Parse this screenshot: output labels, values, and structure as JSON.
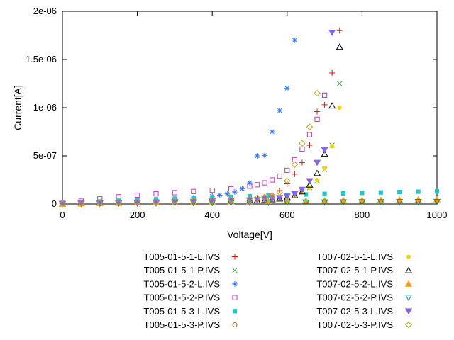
{
  "chart_data": {
    "type": "scatter",
    "title": "",
    "xlabel": "Voltage[V]",
    "ylabel": "Current[A]",
    "xlim": [
      0,
      1000
    ],
    "ylim": [
      0,
      2e-06
    ],
    "grid": false,
    "legend_position": "below-plot-two-columns",
    "x_tick_values": [
      0,
      200,
      400,
      600,
      800,
      1000
    ],
    "x_tick_labels": [
      "0",
      "200",
      "400",
      "600",
      "800",
      "1000"
    ],
    "y_tick_values": [
      0,
      5e-07,
      1e-06,
      1.5e-06,
      2e-06
    ],
    "y_tick_labels": [
      "0",
      "5e-07",
      "1e-06",
      "1.5e-06",
      "2e-06"
    ],
    "series": [
      {
        "name": "T005-01-5-1-L.IVS",
        "marker": "plus",
        "color": "#e01414",
        "points": [
          [
            0,
            5e-09
          ],
          [
            50,
            1.2e-08
          ],
          [
            100,
            1.6e-08
          ],
          [
            150,
            2e-08
          ],
          [
            200,
            2.3e-08
          ],
          [
            250,
            2.6e-08
          ],
          [
            300,
            3e-08
          ],
          [
            350,
            3.4e-08
          ],
          [
            400,
            3.9e-08
          ],
          [
            450,
            4.5e-08
          ],
          [
            500,
            5.5e-08
          ],
          [
            520,
            6.2e-08
          ],
          [
            540,
            7.5e-08
          ],
          [
            560,
            9.5e-08
          ],
          [
            580,
            1.4e-07
          ],
          [
            600,
            2.1e-07
          ],
          [
            620,
            3.1e-07
          ],
          [
            640,
            4.3e-07
          ],
          [
            660,
            6.1e-07
          ],
          [
            680,
            9.6e-07
          ],
          [
            700,
            1.03e-06
          ],
          [
            720,
            1.36e-06
          ],
          [
            740,
            1.8e-06
          ]
        ]
      },
      {
        "name": "T005-01-5-1-P.IVS",
        "marker": "cross",
        "color": "#44aa44",
        "points": [
          [
            0,
            3e-09
          ],
          [
            50,
            8e-09
          ],
          [
            100,
            1.1e-08
          ],
          [
            150,
            1.4e-08
          ],
          [
            200,
            1.6e-08
          ],
          [
            250,
            1.9e-08
          ],
          [
            300,
            2.2e-08
          ],
          [
            350,
            2.5e-08
          ],
          [
            400,
            2.9e-08
          ],
          [
            450,
            3.3e-08
          ],
          [
            500,
            3.8e-08
          ],
          [
            520,
            4.2e-08
          ],
          [
            540,
            4.7e-08
          ],
          [
            560,
            5.3e-08
          ],
          [
            580,
            6.2e-08
          ],
          [
            600,
            7.5e-08
          ],
          [
            620,
            9.5e-08
          ],
          [
            640,
            1.25e-07
          ],
          [
            660,
            1.7e-07
          ],
          [
            680,
            2.4e-07
          ],
          [
            700,
            3.6e-07
          ],
          [
            720,
            6.1e-07
          ],
          [
            740,
            1.25e-06
          ]
        ]
      },
      {
        "name": "T005-01-5-2-L.IVS",
        "marker": "asterisk",
        "color": "#3377ff",
        "points": [
          [
            0,
            6e-09
          ],
          [
            50,
            1.5e-08
          ],
          [
            100,
            2.2e-08
          ],
          [
            150,
            2.9e-08
          ],
          [
            200,
            3.6e-08
          ],
          [
            250,
            4.4e-08
          ],
          [
            300,
            5.4e-08
          ],
          [
            350,
            6.6e-08
          ],
          [
            400,
            8.2e-08
          ],
          [
            420,
            9.2e-08
          ],
          [
            440,
            1.05e-07
          ],
          [
            460,
            1.25e-07
          ],
          [
            480,
            1.6e-07
          ],
          [
            500,
            2.2e-07
          ],
          [
            520,
            5e-07
          ],
          [
            540,
            5.05e-07
          ],
          [
            560,
            7.5e-07
          ],
          [
            580,
            9.7e-07
          ],
          [
            600,
            1.2e-06
          ],
          [
            620,
            1.7e-06
          ]
        ]
      },
      {
        "name": "T005-01-5-2-P.IVS",
        "marker": "square-open",
        "color": "#c23ac2",
        "points": [
          [
            0,
            8e-09
          ],
          [
            50,
            3e-08
          ],
          [
            100,
            5.5e-08
          ],
          [
            150,
            7.5e-08
          ],
          [
            200,
            9.2e-08
          ],
          [
            250,
            1.06e-07
          ],
          [
            300,
            1.18e-07
          ],
          [
            350,
            1.3e-07
          ],
          [
            400,
            1.42e-07
          ],
          [
            450,
            1.58e-07
          ],
          [
            500,
            1.85e-07
          ],
          [
            520,
            2e-07
          ],
          [
            540,
            2.2e-07
          ],
          [
            560,
            2.5e-07
          ],
          [
            580,
            2.9e-07
          ],
          [
            600,
            3.5e-07
          ],
          [
            620,
            4.6e-07
          ],
          [
            640,
            5.7e-07
          ],
          [
            660,
            7.2e-07
          ],
          [
            680,
            8.8e-07
          ],
          [
            700,
            1.13e-06
          ]
        ]
      },
      {
        "name": "T005-01-5-3-L.IVS",
        "marker": "square-filled",
        "color": "#1fc8c8",
        "points": [
          [
            0,
            4e-09
          ],
          [
            50,
            1.5e-08
          ],
          [
            100,
            2.6e-08
          ],
          [
            150,
            3.4e-08
          ],
          [
            200,
            4.2e-08
          ],
          [
            250,
            4.9e-08
          ],
          [
            300,
            5.6e-08
          ],
          [
            350,
            6.2e-08
          ],
          [
            400,
            6.9e-08
          ],
          [
            450,
            7.5e-08
          ],
          [
            500,
            8.1e-08
          ],
          [
            550,
            8.7e-08
          ],
          [
            600,
            9.3e-08
          ],
          [
            650,
            9.9e-08
          ],
          [
            700,
            1.05e-07
          ],
          [
            750,
            1.1e-07
          ],
          [
            800,
            1.15e-07
          ],
          [
            850,
            1.2e-07
          ],
          [
            900,
            1.24e-07
          ],
          [
            950,
            1.28e-07
          ],
          [
            1000,
            1.32e-07
          ]
        ]
      },
      {
        "name": "T005-01-5-3-P.IVS",
        "marker": "circle-open",
        "color": "#b35a1f",
        "points": [
          [
            0,
            2e-09
          ],
          [
            50,
            5e-09
          ],
          [
            100,
            7e-09
          ],
          [
            150,
            9e-09
          ],
          [
            200,
            1.1e-08
          ],
          [
            250,
            1.3e-08
          ],
          [
            300,
            1.5e-08
          ],
          [
            350,
            1.7e-08
          ],
          [
            400,
            1.9e-08
          ],
          [
            450,
            2e-08
          ],
          [
            500,
            2.2e-08
          ],
          [
            550,
            2.3e-08
          ],
          [
            600,
            2.5e-08
          ],
          [
            650,
            2.6e-08
          ],
          [
            700,
            2.7e-08
          ],
          [
            750,
            2.8e-08
          ],
          [
            800,
            2.9e-08
          ],
          [
            850,
            3e-08
          ],
          [
            900,
            3.1e-08
          ],
          [
            950,
            3.2e-08
          ],
          [
            1000,
            3.3e-08
          ]
        ]
      },
      {
        "name": "T007-02-5-1-L.IVS",
        "marker": "circle-filled",
        "color": "#f2d40e",
        "points": [
          [
            0,
            3e-09
          ],
          [
            50,
            7e-09
          ],
          [
            100,
            1e-08
          ],
          [
            150,
            1.3e-08
          ],
          [
            200,
            1.5e-08
          ],
          [
            250,
            1.8e-08
          ],
          [
            300,
            2e-08
          ],
          [
            350,
            2.3e-08
          ],
          [
            400,
            2.6e-08
          ],
          [
            450,
            3e-08
          ],
          [
            500,
            3.5e-08
          ],
          [
            520,
            3.8e-08
          ],
          [
            540,
            4.2e-08
          ],
          [
            560,
            4.8e-08
          ],
          [
            580,
            5.6e-08
          ],
          [
            600,
            7e-08
          ],
          [
            620,
            9e-08
          ],
          [
            640,
            1.2e-07
          ],
          [
            660,
            1.7e-07
          ],
          [
            680,
            2.5e-07
          ],
          [
            700,
            3.7e-07
          ],
          [
            720,
            6e-07
          ],
          [
            740,
            1e-06
          ]
        ]
      },
      {
        "name": "T007-02-5-1-P.IVS",
        "marker": "triangle-up-open",
        "color": "#000000",
        "points": [
          [
            0,
            2e-09
          ],
          [
            50,
            6e-09
          ],
          [
            100,
            9e-09
          ],
          [
            150,
            1.2e-08
          ],
          [
            200,
            1.4e-08
          ],
          [
            250,
            1.7e-08
          ],
          [
            300,
            1.9e-08
          ],
          [
            350,
            2.2e-08
          ],
          [
            400,
            2.5e-08
          ],
          [
            450,
            2.9e-08
          ],
          [
            500,
            3.4e-08
          ],
          [
            520,
            3.7e-08
          ],
          [
            540,
            4.1e-08
          ],
          [
            560,
            4.7e-08
          ],
          [
            580,
            5.5e-08
          ],
          [
            600,
            6.8e-08
          ],
          [
            620,
            9e-08
          ],
          [
            640,
            1.3e-07
          ],
          [
            660,
            2e-07
          ],
          [
            680,
            3.2e-07
          ],
          [
            700,
            5.2e-07
          ],
          [
            720,
            1.02e-06
          ],
          [
            740,
            1.63e-06
          ]
        ]
      },
      {
        "name": "T007-02-5-2-L.IVS",
        "marker": "triangle-up-filled",
        "color": "#ff9d00",
        "points": [
          [
            0,
            2e-09
          ],
          [
            50,
            6e-09
          ],
          [
            100,
            9e-09
          ],
          [
            150,
            1.2e-08
          ],
          [
            200,
            1.5e-08
          ],
          [
            250,
            1.7e-08
          ],
          [
            300,
            1.9e-08
          ],
          [
            350,
            2.1e-08
          ],
          [
            400,
            2.3e-08
          ],
          [
            450,
            2.5e-08
          ],
          [
            500,
            2.7e-08
          ],
          [
            550,
            2.9e-08
          ],
          [
            600,
            3.1e-08
          ],
          [
            650,
            3.3e-08
          ],
          [
            700,
            3.5e-08
          ],
          [
            750,
            3.7e-08
          ],
          [
            800,
            3.9e-08
          ],
          [
            850,
            4.1e-08
          ],
          [
            900,
            4.3e-08
          ],
          [
            950,
            4.5e-08
          ],
          [
            1000,
            4.7e-08
          ]
        ]
      },
      {
        "name": "T007-02-5-2-P.IVS",
        "marker": "triangle-down-open",
        "color": "#12897b",
        "points": [
          [
            0,
            1e-09
          ],
          [
            50,
            3e-09
          ],
          [
            100,
            5e-09
          ],
          [
            150,
            6e-09
          ],
          [
            200,
            8e-09
          ],
          [
            250,
            9e-09
          ],
          [
            300,
            1e-08
          ],
          [
            350,
            1.1e-08
          ],
          [
            400,
            1.2e-08
          ],
          [
            450,
            1.3e-08
          ],
          [
            500,
            1.4e-08
          ],
          [
            550,
            1.5e-08
          ],
          [
            600,
            1.6e-08
          ],
          [
            650,
            1.7e-08
          ],
          [
            700,
            1.8e-08
          ],
          [
            750,
            1.9e-08
          ],
          [
            800,
            2e-08
          ],
          [
            850,
            2.1e-08
          ],
          [
            900,
            2.2e-08
          ],
          [
            950,
            2.3e-08
          ],
          [
            1000,
            2.4e-08
          ]
        ]
      },
      {
        "name": "T007-02-5-3-L.IVS",
        "marker": "triangle-down-filled",
        "color": "#8666e0",
        "points": [
          [
            0,
            3e-09
          ],
          [
            50,
            7e-09
          ],
          [
            100,
            1e-08
          ],
          [
            150,
            1.3e-08
          ],
          [
            200,
            1.6e-08
          ],
          [
            250,
            1.9e-08
          ],
          [
            300,
            2.2e-08
          ],
          [
            350,
            2.5e-08
          ],
          [
            400,
            2.9e-08
          ],
          [
            450,
            3.3e-08
          ],
          [
            500,
            3.9e-08
          ],
          [
            520,
            4.3e-08
          ],
          [
            540,
            4.8e-08
          ],
          [
            560,
            5.5e-08
          ],
          [
            580,
            6.5e-08
          ],
          [
            600,
            8e-08
          ],
          [
            620,
            1.05e-07
          ],
          [
            640,
            1.5e-07
          ],
          [
            660,
            2.4e-07
          ],
          [
            680,
            4.3e-07
          ],
          [
            700,
            5.6e-07
          ],
          [
            720,
            1.78e-06
          ]
        ]
      },
      {
        "name": "T007-02-5-3-P.IVS",
        "marker": "diamond-open",
        "color": "#b7a41c",
        "points": [
          [
            0,
            3e-09
          ],
          [
            50,
            8e-09
          ],
          [
            100,
            1.2e-08
          ],
          [
            150,
            1.6e-08
          ],
          [
            200,
            2e-08
          ],
          [
            250,
            2.4e-08
          ],
          [
            300,
            2.8e-08
          ],
          [
            350,
            3.3e-08
          ],
          [
            400,
            3.9e-08
          ],
          [
            450,
            4.6e-08
          ],
          [
            500,
            5.6e-08
          ],
          [
            520,
            6.3e-08
          ],
          [
            540,
            7.3e-08
          ],
          [
            560,
            8.8e-08
          ],
          [
            580,
            1.2e-07
          ],
          [
            600,
            2.4e-07
          ],
          [
            620,
            4.1e-07
          ],
          [
            640,
            6.3e-07
          ],
          [
            660,
            8e-07
          ],
          [
            680,
            1.15e-06
          ]
        ]
      }
    ]
  }
}
